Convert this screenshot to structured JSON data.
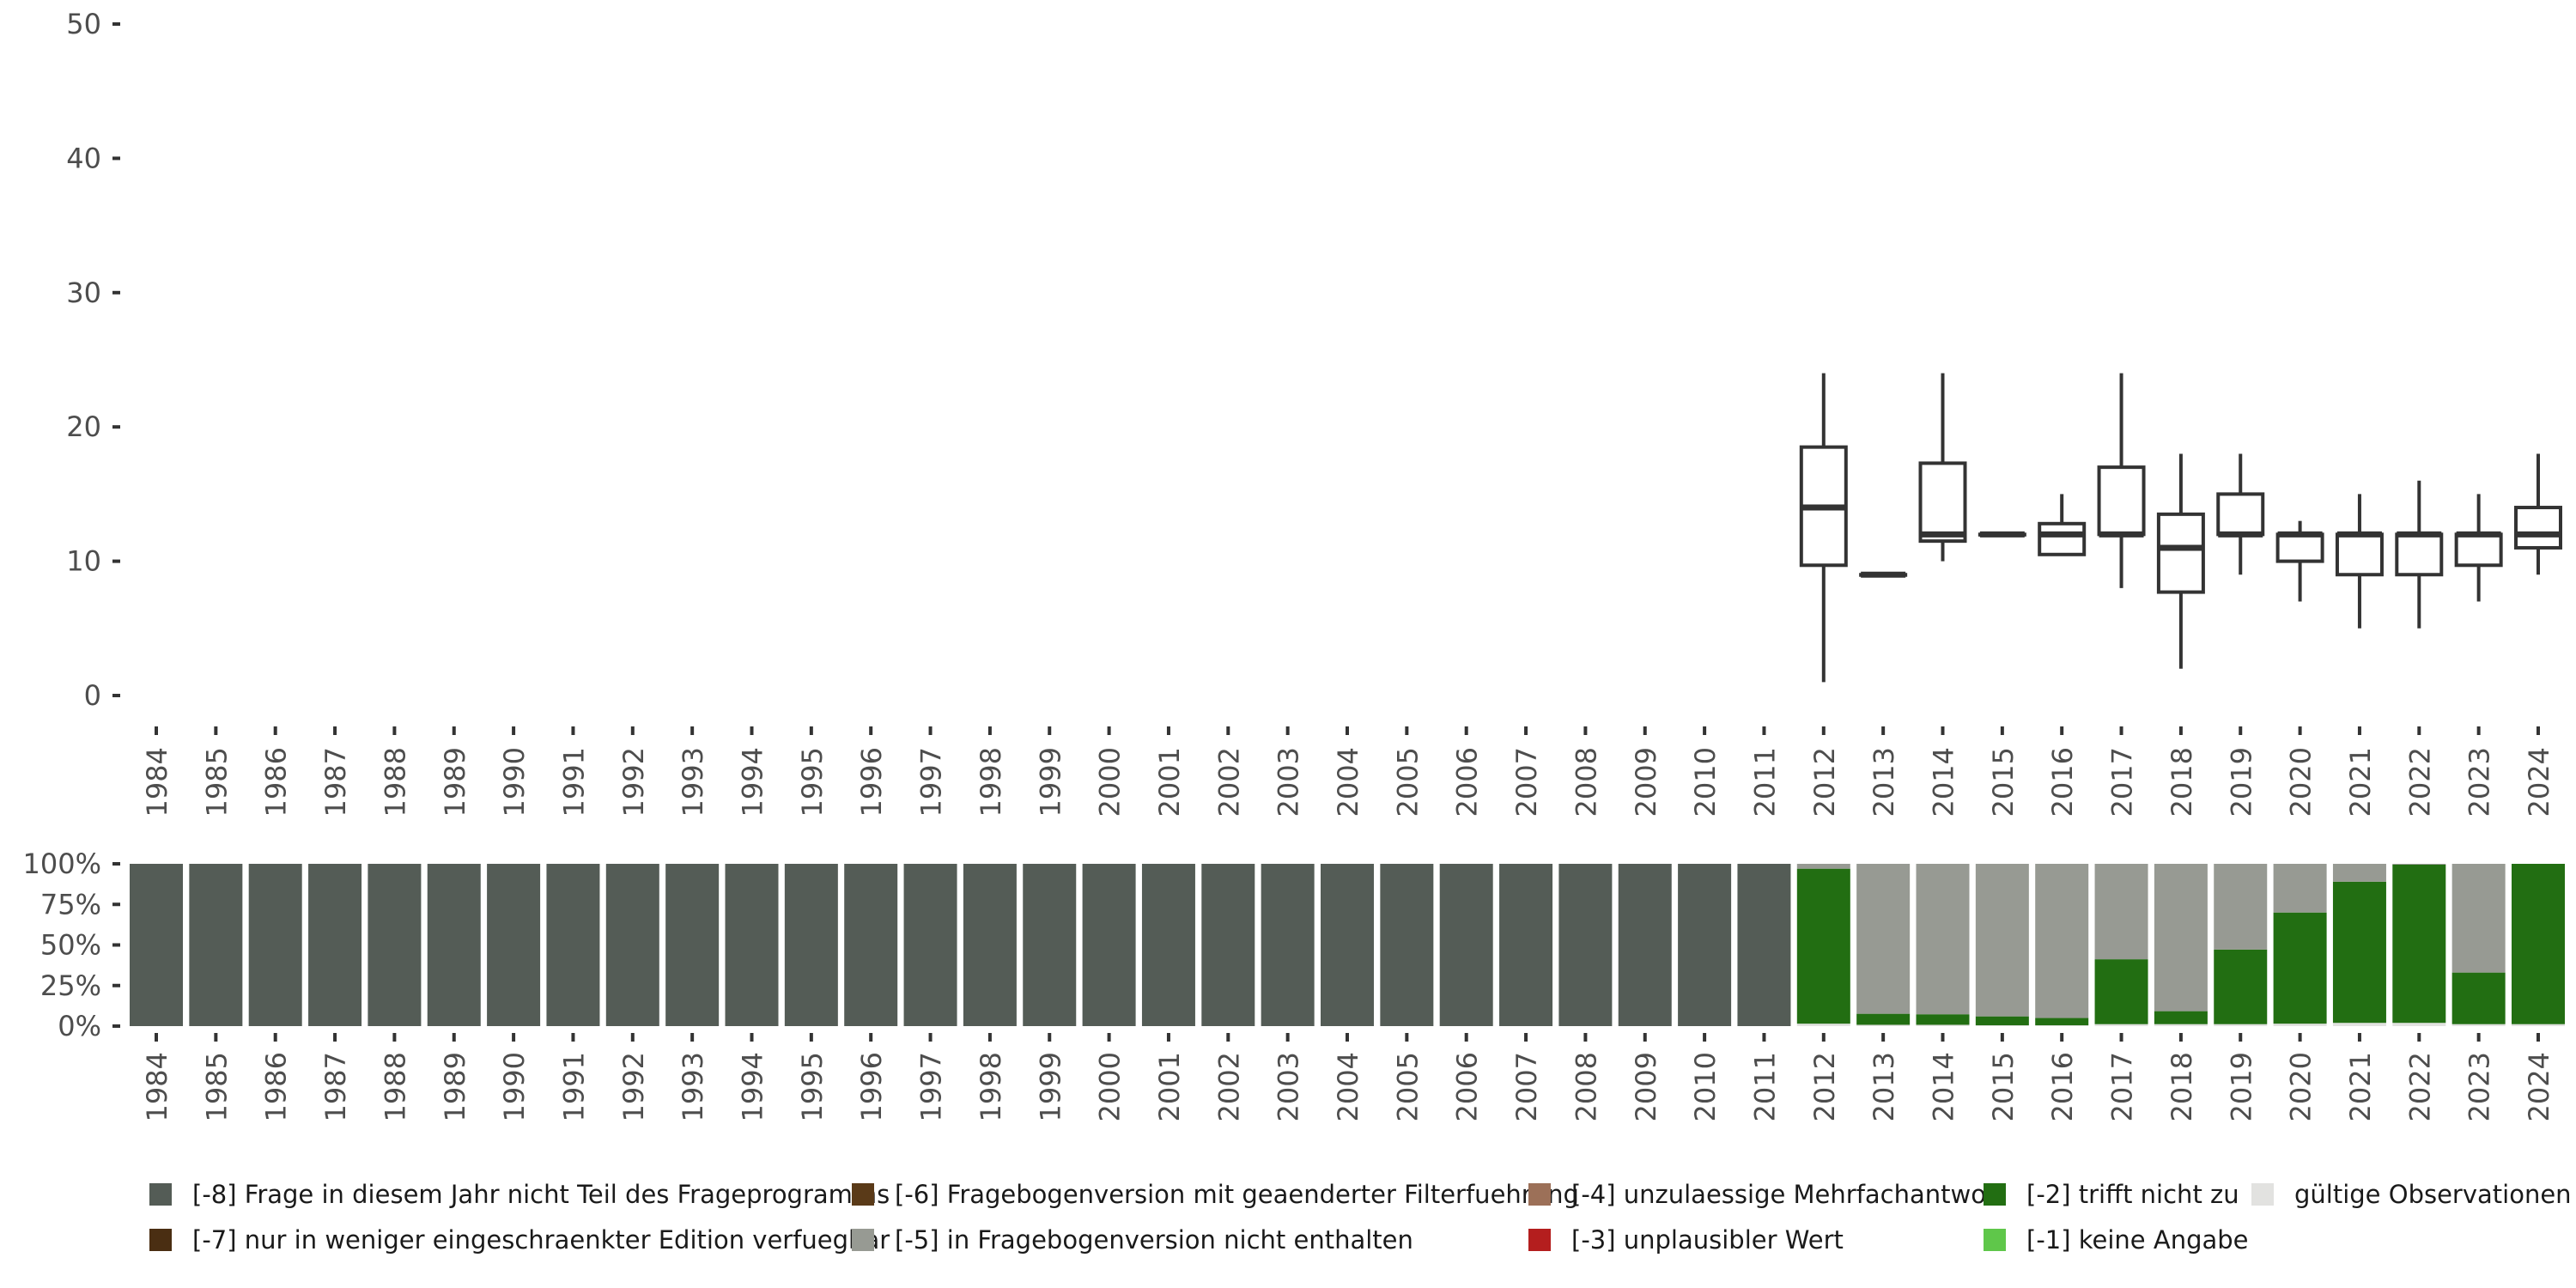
{
  "chart_data": [
    {
      "type": "boxplot",
      "title": "",
      "xlabel": "",
      "ylabel": "",
      "ylim": [
        0,
        50
      ],
      "y_ticks": [
        "0",
        "10",
        "20",
        "30",
        "40",
        "50"
      ],
      "categories": [
        "1984",
        "1985",
        "1986",
        "1987",
        "1988",
        "1989",
        "1990",
        "1991",
        "1992",
        "1993",
        "1994",
        "1995",
        "1996",
        "1997",
        "1998",
        "1999",
        "2000",
        "2001",
        "2002",
        "2003",
        "2004",
        "2005",
        "2006",
        "2007",
        "2008",
        "2009",
        "2010",
        "2011",
        "2012",
        "2013",
        "2014",
        "2015",
        "2016",
        "2017",
        "2018",
        "2019",
        "2020",
        "2021",
        "2022",
        "2023",
        "2024"
      ],
      "boxes": [
        {
          "year": "2012",
          "min": 1,
          "q1": 9.7,
          "median": 14,
          "q3": 18.5,
          "max": 24
        },
        {
          "year": "2013",
          "min": 9,
          "q1": 9,
          "median": 9,
          "q3": 9,
          "max": 9
        },
        {
          "year": "2014",
          "min": 10,
          "q1": 11.5,
          "median": 12,
          "q3": 17.3,
          "max": 24
        },
        {
          "year": "2015",
          "min": 12,
          "q1": 12,
          "median": 12,
          "q3": 12,
          "max": 12
        },
        {
          "year": "2016",
          "min": 10.5,
          "q1": 10.5,
          "median": 12,
          "q3": 12.8,
          "max": 15
        },
        {
          "year": "2017",
          "min": 8,
          "q1": 12,
          "median": 12,
          "q3": 17,
          "max": 24
        },
        {
          "year": "2018",
          "min": 2,
          "q1": 7.7,
          "median": 11,
          "q3": 13.5,
          "max": 18
        },
        {
          "year": "2019",
          "min": 9,
          "q1": 12,
          "median": 12,
          "q3": 15,
          "max": 18
        },
        {
          "year": "2020",
          "min": 7,
          "q1": 10,
          "median": 12,
          "q3": 12,
          "max": 13
        },
        {
          "year": "2021",
          "min": 5,
          "q1": 9,
          "median": 12,
          "q3": 12,
          "max": 15
        },
        {
          "year": "2022",
          "min": 5,
          "q1": 9,
          "median": 12,
          "q3": 12,
          "max": 16
        },
        {
          "year": "2023",
          "min": 7,
          "q1": 9.7,
          "median": 12,
          "q3": 12,
          "max": 15
        },
        {
          "year": "2024",
          "min": 9,
          "q1": 11,
          "median": 12,
          "q3": 14,
          "max": 18
        }
      ]
    },
    {
      "type": "bar",
      "stacked": true,
      "ylim": [
        0,
        100
      ],
      "y_ticks": [
        "0%",
        "25%",
        "50%",
        "75%",
        "100%"
      ],
      "categories": [
        "1984",
        "1985",
        "1986",
        "1987",
        "1988",
        "1989",
        "1990",
        "1991",
        "1992",
        "1993",
        "1994",
        "1995",
        "1996",
        "1997",
        "1998",
        "1999",
        "2000",
        "2001",
        "2002",
        "2003",
        "2004",
        "2005",
        "2006",
        "2007",
        "2008",
        "2009",
        "2010",
        "2011",
        "2012",
        "2013",
        "2014",
        "2015",
        "2016",
        "2017",
        "2018",
        "2019",
        "2020",
        "2021",
        "2022",
        "2023",
        "2024"
      ],
      "series": [
        {
          "name": "[-1] keine Angabe",
          "color": "#5fc74a",
          "values": [
            0,
            0,
            0,
            0,
            0,
            0,
            0,
            0,
            0,
            0,
            0,
            0,
            0,
            0,
            0,
            0,
            0,
            0,
            0,
            0,
            0,
            0,
            0,
            0,
            0,
            0,
            0,
            0,
            0,
            0,
            0,
            0,
            0,
            0,
            0,
            0,
            0,
            0,
            0,
            0,
            0
          ]
        },
        {
          "name": "gültige Observationen",
          "color": "#e2e2e0",
          "values": [
            0,
            0,
            0,
            0,
            0,
            0,
            0,
            0,
            0,
            0,
            0,
            0,
            0,
            0,
            0,
            0,
            0,
            0,
            0,
            0,
            0,
            0,
            0,
            0,
            0,
            0,
            0,
            0,
            1.5,
            0.8,
            0.8,
            0.5,
            0.5,
            1.2,
            1.2,
            1.2,
            1.5,
            2,
            2,
            1.2,
            1.2
          ]
        },
        {
          "name": "[-2] trifft nicht zu",
          "color": "#226e12",
          "values": [
            0,
            0,
            0,
            0,
            0,
            0,
            0,
            0,
            0,
            0,
            0,
            0,
            0,
            0,
            0,
            0,
            0,
            0,
            0,
            0,
            0,
            0,
            0,
            0,
            0,
            0,
            0,
            0,
            95.5,
            6.8,
            6.5,
            5.5,
            4.5,
            40,
            8,
            46,
            68.5,
            87,
            97.5,
            31.8,
            98.8
          ]
        },
        {
          "name": "[-5] in Fragebogenversion nicht enthalten",
          "color": "#979a93",
          "values": [
            0,
            0,
            0,
            0,
            0,
            0,
            0,
            0,
            0,
            0,
            0,
            0,
            0,
            0,
            0,
            0,
            0,
            0,
            0,
            0,
            0,
            0,
            0,
            0,
            0,
            0,
            0,
            0,
            3,
            92.4,
            92.7,
            94,
            95,
            58.8,
            90.8,
            52.8,
            30,
            11,
            0.5,
            67,
            0
          ]
        },
        {
          "name": "[-8] Frage in diesem Jahr nicht Teil des Frageprogramms",
          "color": "#545c56",
          "values": [
            100,
            100,
            100,
            100,
            100,
            100,
            100,
            100,
            100,
            100,
            100,
            100,
            100,
            100,
            100,
            100,
            100,
            100,
            100,
            100,
            100,
            100,
            100,
            100,
            100,
            100,
            100,
            100,
            0,
            0,
            0,
            0,
            0,
            0,
            0,
            0,
            0,
            0,
            0,
            0,
            0
          ]
        }
      ]
    }
  ],
  "legend": [
    {
      "label": "[-8] Frage in diesem Jahr nicht Teil des Frageprogramms",
      "color": "#545c56"
    },
    {
      "label": "[-6] Fragebogenversion mit geaenderter Filterfuehrung",
      "color": "#5a3a18"
    },
    {
      "label": "[-4] unzulaessige Mehrfachantwort",
      "color": "#9c7058"
    },
    {
      "label": "[-2] trifft nicht zu",
      "color": "#226e12"
    },
    {
      "label": "gültige Observationen",
      "color": "#e2e2e0"
    },
    {
      "label": "[-7] nur in weniger eingeschraenkter Edition verfuegbar",
      "color": "#4a2e12"
    },
    {
      "label": "[-5] in Fragebogenversion nicht enthalten",
      "color": "#979a93"
    },
    {
      "label": "[-3] unplausibler Wert",
      "color": "#b41e1e"
    },
    {
      "label": "[-1] keine Angabe",
      "color": "#5fc74a"
    }
  ]
}
